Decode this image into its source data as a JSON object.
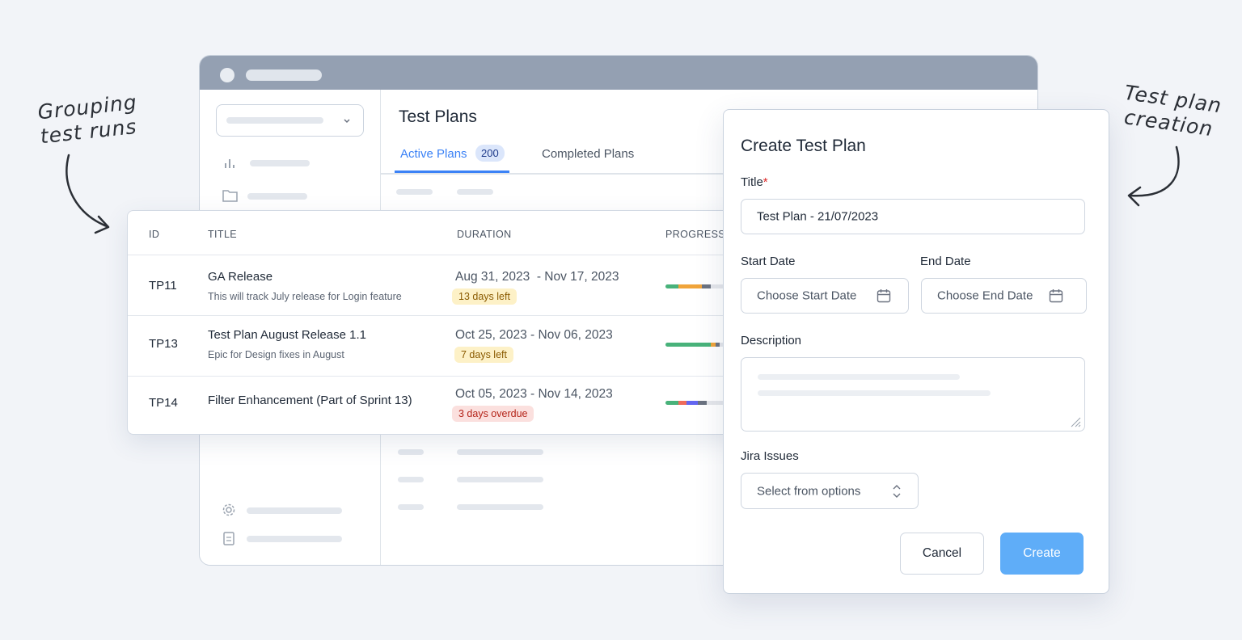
{
  "annotations": {
    "left": [
      "Grouping",
      "test runs"
    ],
    "right": [
      "Test plan",
      "creation"
    ]
  },
  "window": {
    "title": "Test Plans",
    "tabs": [
      {
        "label": "Active Plans",
        "count": "200"
      },
      {
        "label": "Completed Plans"
      }
    ]
  },
  "table": {
    "headers": [
      "ID",
      "TITLE",
      "DURATION",
      "PROGRESS"
    ],
    "rows": [
      {
        "id": "TP11",
        "title": "GA Release",
        "description": "This will track July release for Login feature",
        "duration": "Aug 31, 2023  - Nov 17, 2023",
        "status": "13 days left"
      },
      {
        "id": "TP13",
        "title": "Test Plan August Release 1.1",
        "description": "Epic for Design fixes in August",
        "duration": "Oct 25, 2023 - Nov 06, 2023",
        "status": "7 days left"
      },
      {
        "id": "TP14",
        "title": "Filter Enhancement (Part of Sprint 13)",
        "duration": "Oct 05, 2023 - Nov 14, 2023",
        "status": "3 days overdue"
      }
    ]
  },
  "dialog": {
    "title": "Create Test Plan",
    "fields": {
      "title_label": "Title",
      "required_mark": "*",
      "title_value": "Test Plan - 21/07/2023",
      "start_label": "Start Date",
      "start_placeholder": "Choose Start Date",
      "end_label": "End Date",
      "end_placeholder": "Choose End Date",
      "description_label": "Description",
      "jira_label": "Jira Issues",
      "jira_placeholder": "Select from options"
    },
    "buttons": {
      "cancel": "Cancel",
      "create": "Create"
    }
  }
}
